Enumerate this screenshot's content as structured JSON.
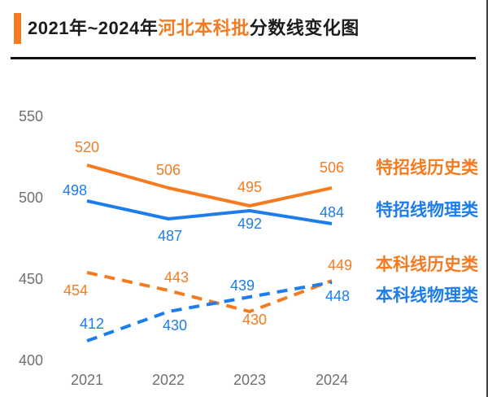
{
  "header": {
    "title_prefix": "2021年~2024年",
    "title_highlight": "河北本科批",
    "title_suffix": "分数线变化图"
  },
  "colors": {
    "orange": "#F57B20",
    "blue": "#1E7DE9",
    "axis_text": "#707070",
    "title_text": "#1C1C1C",
    "divider": "#101010"
  },
  "chart_data": {
    "type": "line",
    "title": "2021年~2024年河北本科批分数线变化图",
    "categories": [
      "2021",
      "2022",
      "2023",
      "2024"
    ],
    "series": [
      {
        "name": "特招线历史类",
        "values": [
          520,
          506,
          495,
          506
        ],
        "color_key": "orange",
        "style": "solid"
      },
      {
        "name": "特招线物理类",
        "values": [
          498,
          487,
          492,
          484
        ],
        "color_key": "blue",
        "style": "solid"
      },
      {
        "name": "本科线历史类",
        "values": [
          454,
          443,
          430,
          449
        ],
        "color_key": "orange",
        "style": "dashed"
      },
      {
        "name": "本科线物理类",
        "values": [
          412,
          430,
          439,
          448
        ],
        "color_key": "blue",
        "style": "dashed"
      }
    ],
    "y_ticks": [
      550,
      500,
      450,
      400
    ],
    "ylim": [
      400,
      550
    ],
    "xlabel": "",
    "ylabel": "",
    "grid": false,
    "legend_position": "right"
  }
}
